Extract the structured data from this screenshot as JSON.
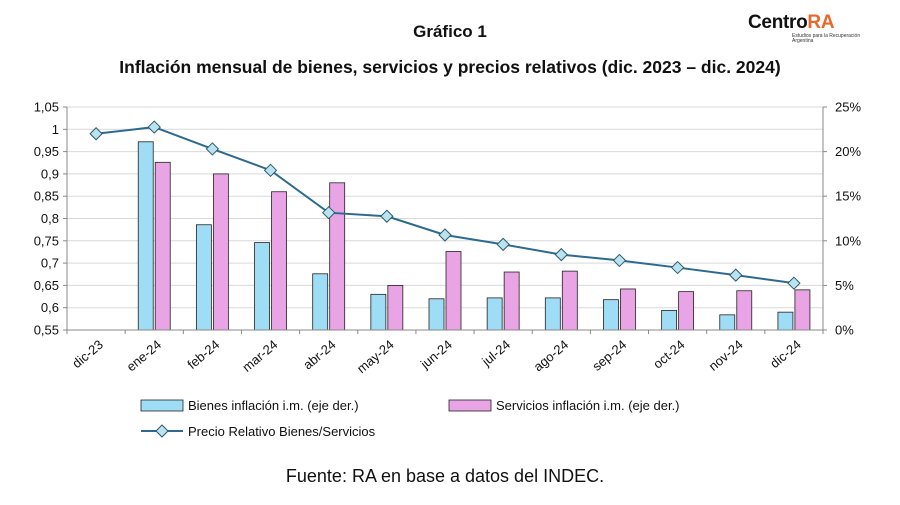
{
  "header": {
    "title": "Gráfico 1",
    "subtitle": "Inflación mensual de bienes, servicios y precios relativos (dic. 2023 – dic. 2024)"
  },
  "logo": {
    "prefix": "Centro",
    "accent": "RA",
    "tagline": "Estudios para la Recuperación Argentina",
    "accent_color": "#e8672a"
  },
  "source": "Fuente: RA en base a datos del INDEC.",
  "chart_data": {
    "type": "bar",
    "categories": [
      "dic-23",
      "ene-24",
      "feb-24",
      "mar-24",
      "abr-24",
      "may-24",
      "jun-24",
      "jul-24",
      "ago-24",
      "sep-24",
      "oct-24",
      "nov-24",
      "dic-24"
    ],
    "y_left": {
      "ylim": [
        0.55,
        1.05
      ],
      "ticks": [
        "0,55",
        "0,6",
        "0,65",
        "0,7",
        "0,75",
        "0,8",
        "0,85",
        "0,9",
        "0,95",
        "1",
        "1,05"
      ]
    },
    "y_right": {
      "ylim": [
        0,
        25
      ],
      "ticks": [
        "0%",
        "5%",
        "10%",
        "15%",
        "20%",
        "25%"
      ]
    },
    "series": [
      {
        "name": "Bienes inflación i.m. (eje der.)",
        "type": "bar",
        "axis": "right",
        "color": "#9fdcf5",
        "values": [
          null,
          21.1,
          11.8,
          9.8,
          6.3,
          4.0,
          3.5,
          3.6,
          3.6,
          3.4,
          2.2,
          1.7,
          2.0
        ]
      },
      {
        "name": "Servicios inflación i.m. (eje der.)",
        "type": "bar",
        "axis": "right",
        "color": "#e9a4e6",
        "values": [
          null,
          18.8,
          17.5,
          15.5,
          16.5,
          5.0,
          8.8,
          6.5,
          6.6,
          4.6,
          4.3,
          4.4,
          4.5
        ]
      },
      {
        "name": "Precio Relativo Bienes/Servicios",
        "type": "line",
        "axis": "left",
        "color": "#2c6b8f",
        "values": [
          0.99,
          1.005,
          0.956,
          0.908,
          0.813,
          0.805,
          0.763,
          0.742,
          0.719,
          0.706,
          0.69,
          0.673,
          0.655
        ]
      }
    ],
    "grid": true,
    "legend_position": "bottom"
  }
}
